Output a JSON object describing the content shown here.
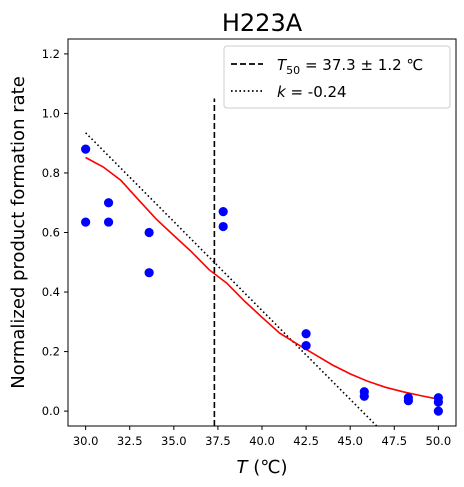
{
  "chart_data": {
    "type": "scatter",
    "title": "H223A",
    "xlabel": {
      "var": "T",
      "unit": " (℃)"
    },
    "ylabel": "Normalized product formation rate",
    "xlim": [
      29.0,
      51.0
    ],
    "ylim": [
      -0.05,
      1.25
    ],
    "xticks": [
      30.0,
      32.5,
      35.0,
      37.5,
      40.0,
      42.5,
      45.0,
      47.5,
      50.0
    ],
    "xtick_labels": [
      "30.0",
      "32.5",
      "35.0",
      "37.5",
      "40.0",
      "42.5",
      "45.0",
      "47.5",
      "50.0"
    ],
    "yticks": [
      0.0,
      0.2,
      0.4,
      0.6,
      0.8,
      1.0,
      1.2
    ],
    "ytick_labels": [
      "0.0",
      "0.2",
      "0.4",
      "0.6",
      "0.8",
      "1.0",
      "1.2"
    ],
    "grid": false,
    "legend_position": "top-right",
    "colors": {
      "points": "#0000ff",
      "fit": "#ff0000",
      "lines": "#000000"
    },
    "points": {
      "x": [
        30.0,
        30.0,
        31.3,
        31.3,
        33.6,
        33.6,
        37.8,
        37.8,
        42.5,
        42.5,
        45.8,
        45.8,
        48.3,
        48.3,
        50.0,
        50.0,
        50.0
      ],
      "y": [
        0.88,
        0.635,
        0.7,
        0.635,
        0.6,
        0.465,
        0.67,
        0.62,
        0.26,
        0.22,
        0.065,
        0.05,
        0.045,
        0.035,
        0.045,
        0.03,
        0.0
      ]
    },
    "fit_curve": {
      "x": [
        30.0,
        31.0,
        32.0,
        33.0,
        34.0,
        35.0,
        36.0,
        37.0,
        38.0,
        39.0,
        40.0,
        41.0,
        42.0,
        43.0,
        44.0,
        45.0,
        46.0,
        47.0,
        48.0,
        49.0,
        50.0
      ],
      "y": [
        0.852,
        0.82,
        0.775,
        0.71,
        0.645,
        0.59,
        0.535,
        0.475,
        0.43,
        0.37,
        0.315,
        0.262,
        0.225,
        0.19,
        0.155,
        0.125,
        0.1,
        0.08,
        0.065,
        0.052,
        0.04
      ]
    },
    "t50": {
      "x": 37.3,
      "y_range": [
        -0.05,
        1.05
      ]
    },
    "slope_line": {
      "x": [
        30.0,
        46.5
      ],
      "y": [
        0.935,
        -0.05
      ]
    },
    "legend": [
      {
        "style": "dashed",
        "symbol": "T",
        "subscript": "50",
        "rest": " = 37.3 ± 1.2 ℃"
      },
      {
        "style": "dotted",
        "symbol": "k",
        "subscript": "",
        "rest": " = -0.24"
      }
    ]
  }
}
